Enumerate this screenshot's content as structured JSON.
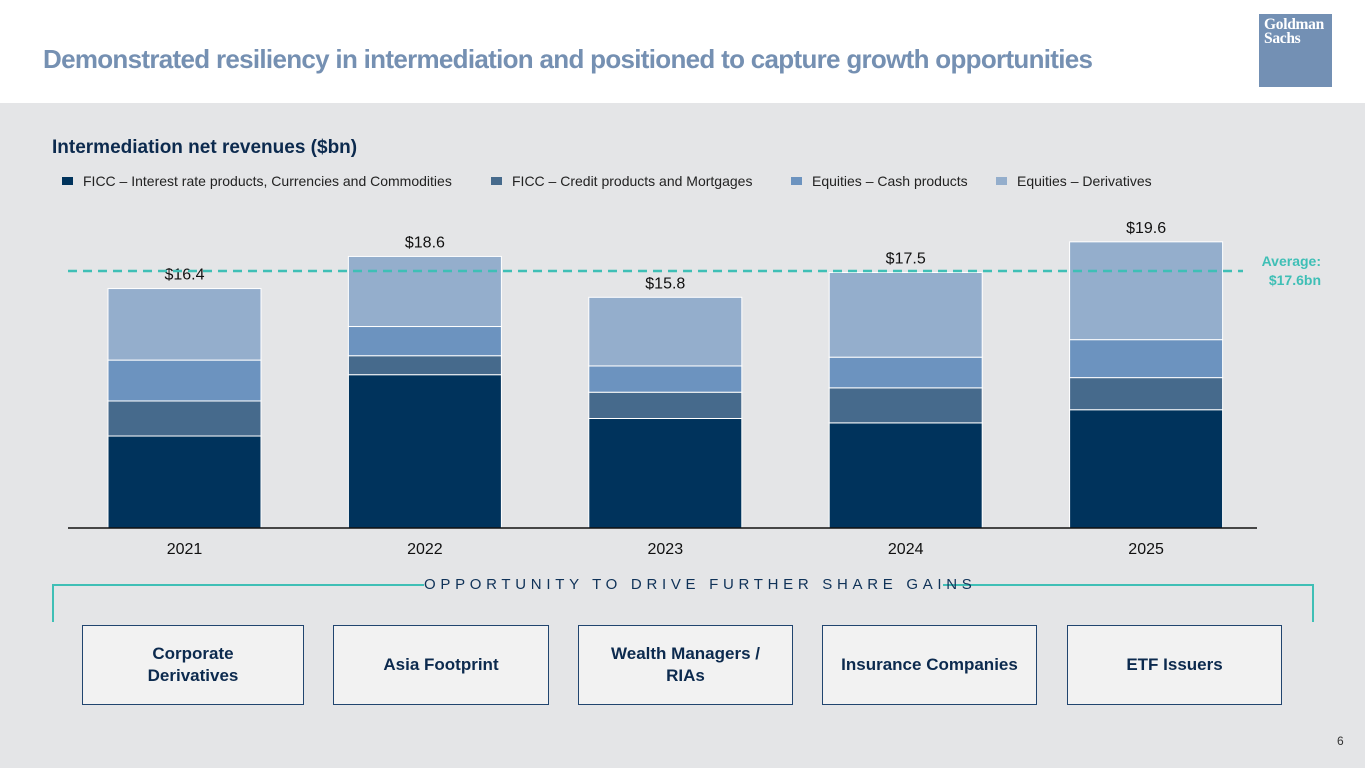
{
  "header": {
    "title": "Demonstrated resiliency in intermediation and positioned to capture growth opportunities",
    "logo_line1": "Goldman",
    "logo_line2": "Sachs"
  },
  "chart_title": "Intermediation net revenues ($bn)",
  "legend": [
    {
      "label": "FICC – Interest rate products, Currencies and Commodities",
      "color": "#00335c"
    },
    {
      "label": "FICC – Credit products and Mortgages",
      "color": "#466a8c"
    },
    {
      "label": "Equities – Cash products",
      "color": "#6c93bf"
    },
    {
      "label": "Equities – Derivatives",
      "color": "#94aecc"
    }
  ],
  "chart_data": {
    "type": "bar",
    "stacked": true,
    "title": "Intermediation net revenues ($bn)",
    "categories": [
      "2021",
      "2022",
      "2023",
      "2024",
      "2025"
    ],
    "series": [
      {
        "name": "FICC – Interest rate products, Currencies and Commodities",
        "color": "#00335c",
        "values": [
          6.3,
          10.5,
          7.5,
          7.2,
          8.1
        ]
      },
      {
        "name": "FICC – Credit products and Mortgages",
        "color": "#466a8c",
        "values": [
          2.4,
          1.3,
          1.8,
          2.4,
          2.2
        ]
      },
      {
        "name": "Equities – Cash products",
        "color": "#6c93bf",
        "values": [
          2.8,
          2.0,
          1.8,
          2.1,
          2.6
        ]
      },
      {
        "name": "Equities – Derivatives",
        "color": "#94aecc",
        "values": [
          4.9,
          4.8,
          4.7,
          5.8,
          6.7
        ]
      }
    ],
    "totals": [
      16.4,
      18.6,
      15.8,
      17.5,
      19.6
    ],
    "total_labels": [
      "$16.4",
      "$18.6",
      "$15.8",
      "$17.5",
      "$19.6"
    ],
    "average": 17.6,
    "average_label_line1": "Average:",
    "average_label_line2": "$17.6bn",
    "average_color": "#3fbfb6",
    "ylim": [
      0,
      20
    ]
  },
  "banner": {
    "label": "OPPORTUNITY TO DRIVE FURTHER SHARE GAINS"
  },
  "opportunities": [
    "Corporate Derivatives",
    "Asia Footprint",
    "Wealth Managers / RIAs",
    "Insurance Companies",
    "ETF Issuers"
  ],
  "page_number": "6"
}
